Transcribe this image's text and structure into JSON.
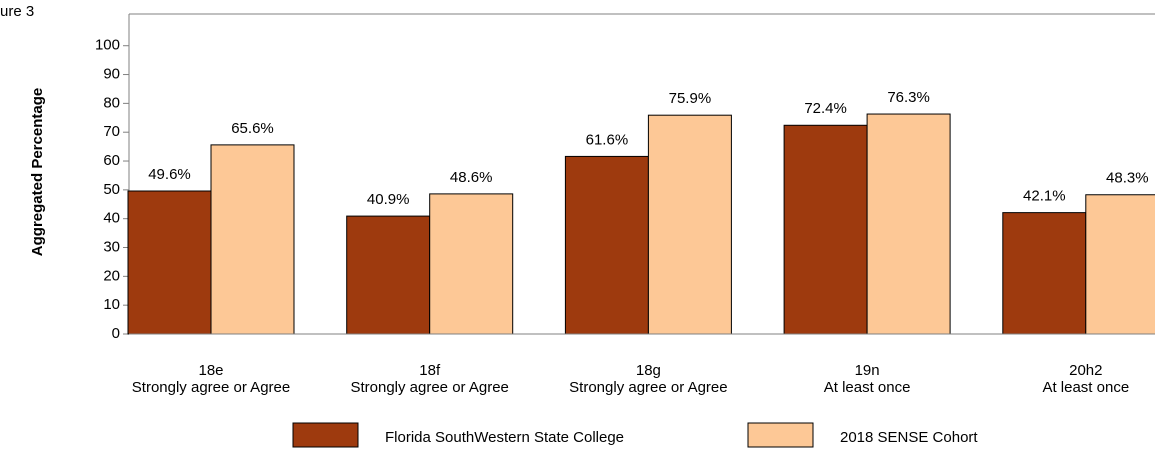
{
  "chart_data": {
    "type": "bar",
    "title": "ure 3",
    "ylabel": "Aggregated Percentage",
    "categories": [
      [
        "18e",
        "Strongly agree or Agree"
      ],
      [
        "18f",
        "Strongly agree or Agree"
      ],
      [
        "18g",
        "Strongly agree or Agree"
      ],
      [
        "19n",
        "At least once"
      ],
      [
        "20h2",
        "At least once"
      ]
    ],
    "series": [
      {
        "name": "Florida SouthWestern State College",
        "color": "#9e3a0e",
        "values": [
          49.6,
          40.9,
          61.6,
          72.4,
          42.1
        ],
        "value_labels": [
          "49.6%",
          "40.9%",
          "61.6%",
          "72.4%",
          "42.1%"
        ]
      },
      {
        "name": "2018 SENSE Cohort",
        "color": "#fdc896",
        "values": [
          65.6,
          48.6,
          75.9,
          76.3,
          48.3
        ],
        "value_labels": [
          "65.6%",
          "48.6%",
          "75.9%",
          "76.3%",
          "48.3%"
        ]
      }
    ],
    "ylim": [
      0,
      111
    ],
    "yticks": [
      0,
      10,
      20,
      30,
      40,
      50,
      60,
      70,
      80,
      90,
      100
    ],
    "grid": false,
    "legend": "bottom"
  }
}
